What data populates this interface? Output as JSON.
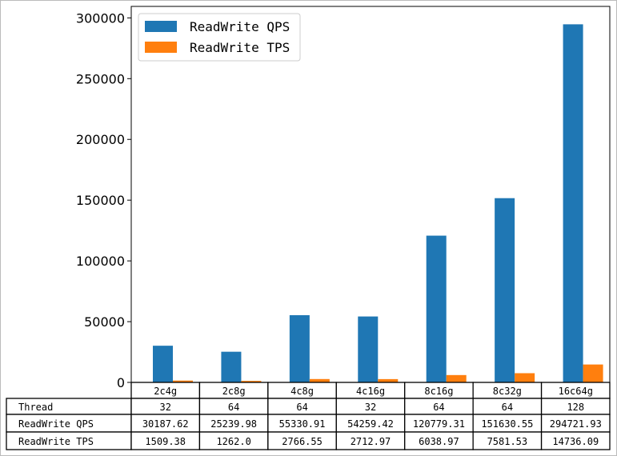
{
  "chart_data": {
    "type": "bar",
    "title": "",
    "xlabel": "",
    "ylabel": "",
    "categories": [
      "2c4g",
      "2c8g",
      "4c8g",
      "4c16g",
      "8c16g",
      "8c32g",
      "16c64g"
    ],
    "series": [
      {
        "name": "ReadWrite QPS",
        "color": "#1f77b4",
        "values": [
          30187.62,
          25239.98,
          55330.91,
          54259.42,
          120779.31,
          151630.55,
          294721.93
        ]
      },
      {
        "name": "ReadWrite TPS",
        "color": "#ff7f0e",
        "values": [
          1509.38,
          1262.0,
          2766.55,
          2712.97,
          6038.97,
          7581.53,
          14736.09
        ]
      }
    ],
    "ylim": [
      0,
      309458
    ],
    "yticks": [
      "0",
      "50000",
      "100000",
      "150000",
      "200000",
      "250000",
      "300000"
    ],
    "ytick_values": [
      0,
      50000,
      100000,
      150000,
      200000,
      250000,
      300000
    ],
    "legend_placement": "top-left",
    "grid": false,
    "table": {
      "rows": [
        {
          "label": "Thread",
          "cells": [
            "32",
            "64",
            "64",
            "32",
            "64",
            "64",
            "128"
          ]
        },
        {
          "label": "ReadWrite QPS",
          "cells": [
            "30187.62",
            "25239.98",
            "55330.91",
            "54259.42",
            "120779.31",
            "151630.55",
            "294721.93"
          ]
        },
        {
          "label": "ReadWrite TPS",
          "cells": [
            "1509.38",
            "1262.0",
            "2766.55",
            "2712.97",
            "6038.97",
            "7581.53",
            "14736.09"
          ]
        }
      ]
    }
  }
}
